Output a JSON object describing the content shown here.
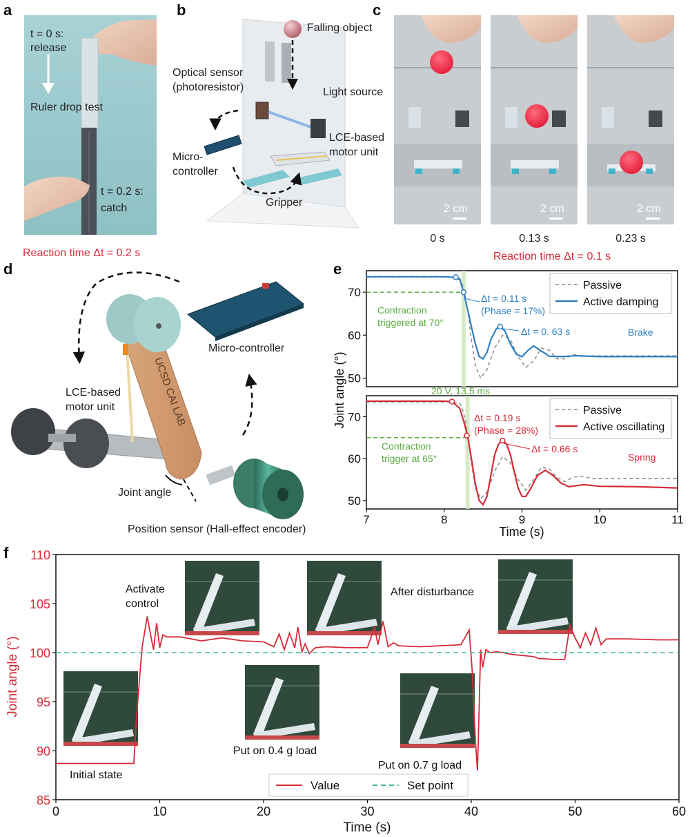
{
  "panel_letters": {
    "a": "a",
    "b": "b",
    "c": "c",
    "d": "d",
    "e": "e",
    "f": "f"
  },
  "colors": {
    "red": "#d62b38",
    "blue": "#2f7fc0",
    "green": "#5aab3f",
    "teal": "#3bb5a0",
    "gray": "#8a8a8a"
  },
  "panel_a": {
    "release_line1": "t = 0 s:",
    "release_line2": "release",
    "ruler_test": "Ruler drop test",
    "catch_line1": "t = 0.2 s:",
    "catch_line2": "catch",
    "reaction": "Reaction time Δt = 0.2 s"
  },
  "panel_b": {
    "falling_object": "Falling object",
    "optical_line1": "Optical sensor",
    "optical_line2": "(photoresistor)",
    "light_source": "Light source",
    "lce_line1": "LCE-based",
    "lce_line2": "motor unit",
    "micro_line1": "Micro-",
    "micro_line2": "controller",
    "gripper": "Gripper"
  },
  "panel_c": {
    "times": [
      "0 s",
      "0.13 s",
      "0.23 s"
    ],
    "scale": "2 cm",
    "reaction": "Reaction time Δt = 0.1 s"
  },
  "panel_d": {
    "micro": "Micro-controller",
    "lce_line1": "LCE-based",
    "lce_line2": "motor unit",
    "joint": "Joint angle",
    "sensor": "Position sensor (Hall-effect encoder)",
    "arm_text": "UCSD CAI LAB"
  },
  "chart_data": [
    {
      "type": "line",
      "panel": "e-top",
      "xlim": [
        7,
        11
      ],
      "ylim": [
        48,
        75
      ],
      "yticks": [
        50,
        60,
        70
      ],
      "legend": [
        "Passive",
        "Active damping"
      ],
      "legend_position": "top-right",
      "series": [
        {
          "name": "Passive",
          "style": "dashed",
          "color": "#8a8a8a",
          "x": [
            7.0,
            8.1,
            8.2,
            8.25,
            8.3,
            8.35,
            8.4,
            8.47,
            8.55,
            8.65,
            8.75,
            8.85,
            8.95,
            9.05,
            9.15,
            9.25,
            9.35,
            9.45,
            9.55,
            9.65,
            9.8,
            10.0,
            10.5,
            11.0
          ],
          "y": [
            73.5,
            73.5,
            73.3,
            71,
            66,
            59,
            53,
            50,
            52,
            57,
            60,
            59,
            55,
            52.5,
            54,
            57,
            56.5,
            54.5,
            54.5,
            55.5,
            55.2,
            55.2,
            55.2,
            55.2
          ]
        },
        {
          "name": "Active damping",
          "style": "solid",
          "color": "#2f7fc0",
          "x": [
            7.0,
            8.0,
            8.1,
            8.2,
            8.25,
            8.3,
            8.35,
            8.4,
            8.45,
            8.5,
            8.55,
            8.6,
            8.67,
            8.72,
            8.78,
            8.85,
            8.93,
            9.0,
            9.08,
            9.15,
            9.25,
            9.35,
            9.5,
            9.7,
            10.0,
            10.5,
            11.0
          ],
          "y": [
            73.6,
            73.6,
            73.5,
            73,
            70,
            66,
            62,
            58,
            55,
            54.5,
            56,
            59,
            61.5,
            62,
            61,
            58,
            55.5,
            55,
            56.5,
            57.5,
            56.3,
            55.1,
            55.0,
            55.2,
            55.0,
            55.0,
            55.0
          ]
        }
      ],
      "markers": [
        {
          "x": 8.15,
          "y": 73.5
        },
        {
          "x": 8.25,
          "y": 70
        },
        {
          "x": 8.72,
          "y": 62
        }
      ],
      "threshold": 70,
      "annotations": [
        "Contraction",
        "triggered at 70°",
        "Δt = 0.11 s",
        "(Phase = 17%)",
        "Δt = 0. 63 s",
        "Brake"
      ]
    },
    {
      "type": "line",
      "panel": "e-bottom",
      "xlim": [
        7,
        11
      ],
      "ylim": [
        48,
        75
      ],
      "yticks": [
        50,
        60,
        70
      ],
      "xticks": [
        7,
        8,
        9,
        10,
        11
      ],
      "xlabel": "Time (s)",
      "ylabel": "Joint angle (°)",
      "legend": [
        "Passive",
        "Active oscillating"
      ],
      "legend_position": "top-right",
      "series": [
        {
          "name": "Passive",
          "style": "dashed",
          "color": "#8a8a8a",
          "x": [
            7.0,
            8.1,
            8.2,
            8.25,
            8.3,
            8.35,
            8.4,
            8.47,
            8.55,
            8.65,
            8.75,
            8.85,
            8.95,
            9.05,
            9.15,
            9.25,
            9.35,
            9.45,
            9.55,
            9.65,
            9.75,
            9.9,
            10.2,
            11.0
          ],
          "y": [
            73.5,
            73.5,
            73.3,
            71,
            66,
            59,
            53,
            50.5,
            52,
            57,
            60.5,
            59,
            55,
            52.5,
            55,
            58,
            57.5,
            55.5,
            54.5,
            55.5,
            55.8,
            55.3,
            55.3,
            55.3
          ]
        },
        {
          "name": "Active oscillating",
          "style": "solid",
          "color": "#d62b38",
          "x": [
            7.0,
            8.0,
            8.1,
            8.2,
            8.25,
            8.3,
            8.35,
            8.4,
            8.45,
            8.5,
            8.55,
            8.6,
            8.65,
            8.7,
            8.75,
            8.8,
            8.85,
            8.9,
            8.95,
            9.0,
            9.05,
            9.1,
            9.2,
            9.3,
            9.4,
            9.5,
            9.6,
            9.8,
            10.0,
            10.5,
            11.0
          ],
          "y": [
            73.7,
            73.7,
            73.6,
            72,
            69,
            65.5,
            60,
            54,
            50,
            49,
            51,
            56,
            61,
            63.5,
            64.3,
            63.5,
            61,
            57,
            53,
            51,
            51,
            52.5,
            56,
            57.2,
            56,
            54.2,
            53.3,
            53.8,
            53.4,
            53.3,
            53.0
          ]
        }
      ],
      "markers": [
        {
          "x": 8.1,
          "y": 73.6
        },
        {
          "x": 8.29,
          "y": 65.5
        },
        {
          "x": 8.75,
          "y": 64.3
        }
      ],
      "threshold": 65,
      "annotations": [
        "Contraction",
        "trigger at 65°",
        "Δt = 0.19 s",
        "(Phase = 28%)",
        "Δt = 0.66 s",
        "Spring",
        "20 V, 13.5 ms"
      ]
    },
    {
      "type": "line",
      "panel": "f",
      "xlim": [
        0,
        60
      ],
      "ylim": [
        85,
        110
      ],
      "xticks": [
        0,
        10,
        20,
        30,
        40,
        50,
        60
      ],
      "yticks": [
        85,
        90,
        95,
        100,
        105,
        110
      ],
      "xlabel": "Time (s)",
      "ylabel": "Joint angle (°)",
      "legend": [
        "Value",
        "Set point"
      ],
      "legend_position": "bottom-center",
      "series": [
        {
          "name": "Value",
          "style": "solid",
          "color": "#d62b38",
          "x": [
            0,
            7.5,
            7.8,
            8.3,
            8.8,
            9.0,
            9.4,
            9.7,
            10.0,
            10.3,
            10.7,
            12,
            14,
            16,
            18,
            20,
            21,
            21.5,
            22,
            22.5,
            23,
            23.3,
            23.7,
            24,
            24.4,
            25,
            26,
            28,
            30,
            30.7,
            31,
            31.5,
            32,
            32.5,
            33,
            35,
            37,
            39,
            39.8,
            40.1,
            40.4,
            40.6,
            40.75,
            40.9,
            41.1,
            41.4,
            41.8,
            42.5,
            44,
            46,
            46.5,
            48,
            49,
            49.5,
            50,
            50.5,
            51,
            51.5,
            52,
            52.5,
            53,
            55,
            58,
            60
          ],
          "y": [
            88.7,
            88.7,
            94,
            100.5,
            103.7,
            102.5,
            100.3,
            103.0,
            100.5,
            101.8,
            101.6,
            101.6,
            101.2,
            101.5,
            101.2,
            101.1,
            100.6,
            101.9,
            100.3,
            102.0,
            100.5,
            102.6,
            100.1,
            100.9,
            99.9,
            100.5,
            100.6,
            100.5,
            100.5,
            102.6,
            100.8,
            103.2,
            100.6,
            101.0,
            100.7,
            100.6,
            100.7,
            100.8,
            102.3,
            98.0,
            91,
            88.0,
            94,
            100.3,
            98.5,
            100.3,
            100.0,
            100.1,
            99.8,
            99.6,
            99.4,
            99.3,
            99.3,
            102.8,
            101.5,
            100.5,
            102.0,
            100.8,
            102.5,
            100.8,
            101.4,
            101.4,
            101.3,
            101.3
          ]
        },
        {
          "name": "Set point",
          "style": "dashed",
          "color": "#3bb5a0",
          "x": [
            0,
            60
          ],
          "y": [
            100,
            100
          ]
        }
      ],
      "annotations": [
        "Initial state",
        "Activate",
        "control",
        "Put on 0.4 g load",
        "After disturbance",
        "Put on 0.7 g load"
      ]
    }
  ]
}
